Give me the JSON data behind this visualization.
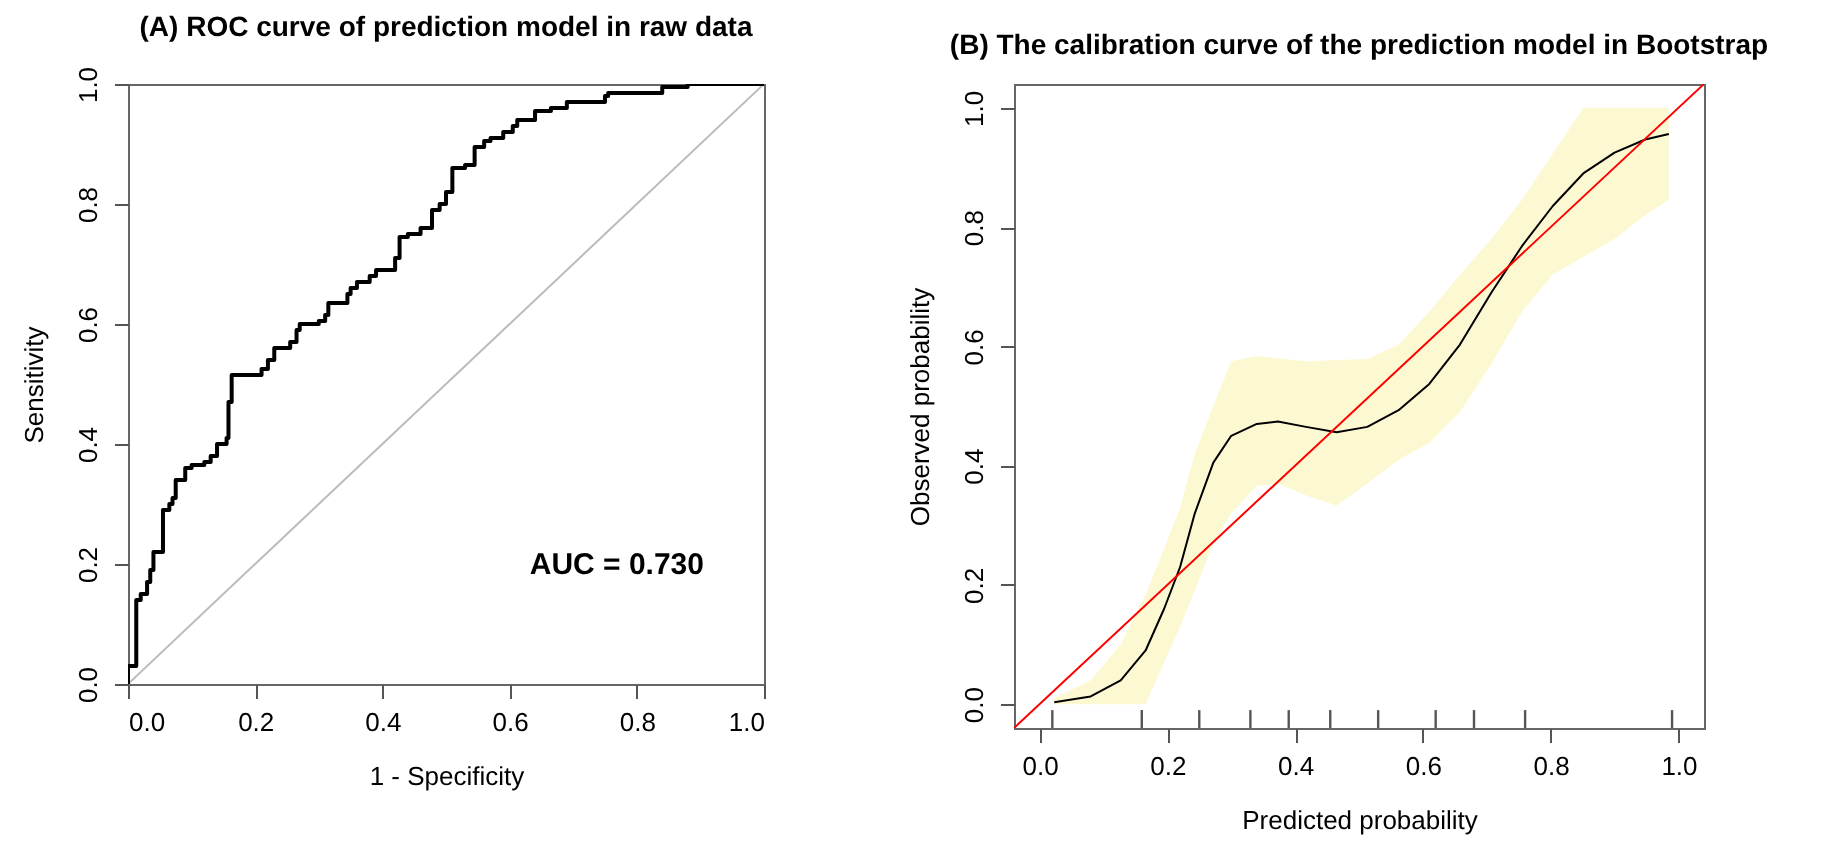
{
  "chart_data": [
    {
      "type": "line",
      "title": "(A) ROC curve of prediction model in raw data",
      "xlabel": "1 - Specificity",
      "ylabel": "Sensitivity",
      "xlim": [
        0,
        1
      ],
      "ylim": [
        0,
        1
      ],
      "xticks": [
        {
          "value": 0,
          "label": "0.0"
        },
        {
          "value": 0.2,
          "label": "0.2"
        },
        {
          "value": 0.4,
          "label": "0.4"
        },
        {
          "value": 0.6,
          "label": "0.6"
        },
        {
          "value": 0.8,
          "label": "0.8"
        },
        {
          "value": 1,
          "label": "1.0"
        }
      ],
      "yticks": [
        {
          "value": 0,
          "label": "0.0"
        },
        {
          "value": 0.2,
          "label": "0.2"
        },
        {
          "value": 0.4,
          "label": "0.4"
        },
        {
          "value": 0.6,
          "label": "0.6"
        },
        {
          "value": 0.8,
          "label": "0.8"
        },
        {
          "value": 1,
          "label": "1.0"
        }
      ],
      "grid": false,
      "annotations": [
        "AUC = 0.730"
      ],
      "series": [
        {
          "color": "#bbbbbb",
          "x": [
            0,
            1
          ],
          "values": [
            0,
            1
          ]
        },
        {
          "color": "#000000",
          "x": [
            0,
            0,
            0.013,
            0.013,
            0.02,
            0.02,
            0.03,
            0.03,
            0.035,
            0.035,
            0.04,
            0.04,
            0.055,
            0.055,
            0.065,
            0.065,
            0.07,
            0.07,
            0.075,
            0.075,
            0.09,
            0.09,
            0.1,
            0.1,
            0.12,
            0.12,
            0.13,
            0.13,
            0.14,
            0.14,
            0.155,
            0.155,
            0.158,
            0.158,
            0.163,
            0.163,
            0.21,
            0.21,
            0.22,
            0.22,
            0.23,
            0.23,
            0.255,
            0.255,
            0.265,
            0.265,
            0.27,
            0.27,
            0.3,
            0.3,
            0.31,
            0.31,
            0.315,
            0.315,
            0.345,
            0.345,
            0.35,
            0.35,
            0.36,
            0.36,
            0.38,
            0.38,
            0.39,
            0.39,
            0.42,
            0.42,
            0.427,
            0.427,
            0.44,
            0.44,
            0.46,
            0.46,
            0.478,
            0.478,
            0.49,
            0.49,
            0.5,
            0.5,
            0.51,
            0.51,
            0.53,
            0.53,
            0.545,
            0.545,
            0.56,
            0.56,
            0.57,
            0.57,
            0.59,
            0.59,
            0.605,
            0.605,
            0.612,
            0.612,
            0.64,
            0.64,
            0.665,
            0.665,
            0.69,
            0.69,
            0.75,
            0.75,
            0.755,
            0.755,
            0.84,
            0.84,
            0.88,
            0.88,
            1
          ],
          "values": [
            0,
            0.03,
            0.03,
            0.14,
            0.14,
            0.15,
            0.15,
            0.17,
            0.17,
            0.19,
            0.19,
            0.22,
            0.22,
            0.29,
            0.29,
            0.3,
            0.3,
            0.31,
            0.31,
            0.34,
            0.34,
            0.36,
            0.36,
            0.365,
            0.365,
            0.37,
            0.37,
            0.38,
            0.38,
            0.4,
            0.4,
            0.41,
            0.41,
            0.47,
            0.47,
            0.515,
            0.515,
            0.525,
            0.525,
            0.54,
            0.54,
            0.56,
            0.56,
            0.57,
            0.57,
            0.59,
            0.59,
            0.6,
            0.6,
            0.605,
            0.605,
            0.615,
            0.615,
            0.635,
            0.635,
            0.65,
            0.65,
            0.66,
            0.66,
            0.67,
            0.67,
            0.68,
            0.68,
            0.69,
            0.69,
            0.71,
            0.71,
            0.745,
            0.745,
            0.75,
            0.75,
            0.76,
            0.76,
            0.79,
            0.79,
            0.8,
            0.8,
            0.82,
            0.82,
            0.86,
            0.86,
            0.865,
            0.865,
            0.895,
            0.895,
            0.905,
            0.905,
            0.91,
            0.91,
            0.92,
            0.92,
            0.93,
            0.93,
            0.94,
            0.94,
            0.955,
            0.955,
            0.96,
            0.96,
            0.97,
            0.97,
            0.98,
            0.98,
            0.985,
            0.985,
            0.995,
            0.995,
            1,
            1
          ]
        }
      ]
    },
    {
      "type": "line",
      "title": "(B) The calibration curve of the prediction model in Bootstrap",
      "xlabel": "Predicted probability",
      "ylabel": "Observed probability",
      "xlim": [
        -0.04,
        1.04
      ],
      "ylim": [
        -0.04,
        1.04
      ],
      "xticks": [
        {
          "value": 0,
          "label": "0.0"
        },
        {
          "value": 0.2,
          "label": "0.2"
        },
        {
          "value": 0.4,
          "label": "0.4"
        },
        {
          "value": 0.6,
          "label": "0.6"
        },
        {
          "value": 0.8,
          "label": "0.8"
        },
        {
          "value": 1,
          "label": "1.0"
        }
      ],
      "yticks": [
        {
          "value": 0,
          "label": "0.0"
        },
        {
          "value": 0.2,
          "label": "0.2"
        },
        {
          "value": 0.4,
          "label": "0.4"
        },
        {
          "value": 0.6,
          "label": "0.6"
        },
        {
          "value": 0.8,
          "label": "0.8"
        },
        {
          "value": 1,
          "label": "1.0"
        }
      ],
      "grid": false,
      "series": [
        {
          "color": "#000000",
          "x": [
            0.023,
            0.08,
            0.127,
            0.166,
            0.195,
            0.22,
            0.243,
            0.272,
            0.3,
            0.34,
            0.373,
            0.417,
            0.465,
            0.513,
            0.562,
            0.61,
            0.658,
            0.707,
            0.755,
            0.803,
            0.851,
            0.9,
            0.948,
            0.985
          ],
          "values": [
            0.003,
            0.013,
            0.04,
            0.09,
            0.16,
            0.23,
            0.32,
            0.405,
            0.45,
            0.47,
            0.474,
            0.465,
            0.456,
            0.465,
            0.493,
            0.537,
            0.603,
            0.69,
            0.768,
            0.835,
            0.89,
            0.925,
            0.947,
            0.956
          ],
          "lower": [
            0,
            0,
            0,
            0,
            0.07,
            0.13,
            0.19,
            0.27,
            0.32,
            0.366,
            0.37,
            0.35,
            0.333,
            0.37,
            0.41,
            0.438,
            0.49,
            0.57,
            0.658,
            0.72,
            0.75,
            0.78,
            0.82,
            0.846
          ],
          "upper": [
            0.01,
            0.04,
            0.1,
            0.184,
            0.26,
            0.33,
            0.42,
            0.5,
            0.575,
            0.584,
            0.58,
            0.575,
            0.577,
            0.579,
            0.603,
            0.658,
            0.72,
            0.78,
            0.846,
            0.923,
            1.0,
            1.0,
            1.0,
            1.0
          ]
        },
        {
          "color": "#ff0000",
          "x": [
            -0.04,
            1.04
          ],
          "values": [
            -0.04,
            1.04
          ]
        },
        {
          "type": "bar",
          "color": "#555555",
          "x": [
            0.02,
            0.16,
            0.25,
            0.33,
            0.39,
            0.455,
            0.53,
            0.62,
            0.68,
            0.76,
            0.99
          ],
          "values": [
            0.03,
            0.03,
            0.03,
            0.03,
            0.03,
            0.03,
            0.03,
            0.03,
            0.03,
            0.03,
            0.03
          ],
          "base": [
            -0.04,
            -0.04,
            -0.04,
            -0.04,
            -0.04,
            -0.04,
            -0.04,
            -0.04,
            -0.04,
            -0.04,
            -0.04
          ]
        }
      ]
    }
  ]
}
